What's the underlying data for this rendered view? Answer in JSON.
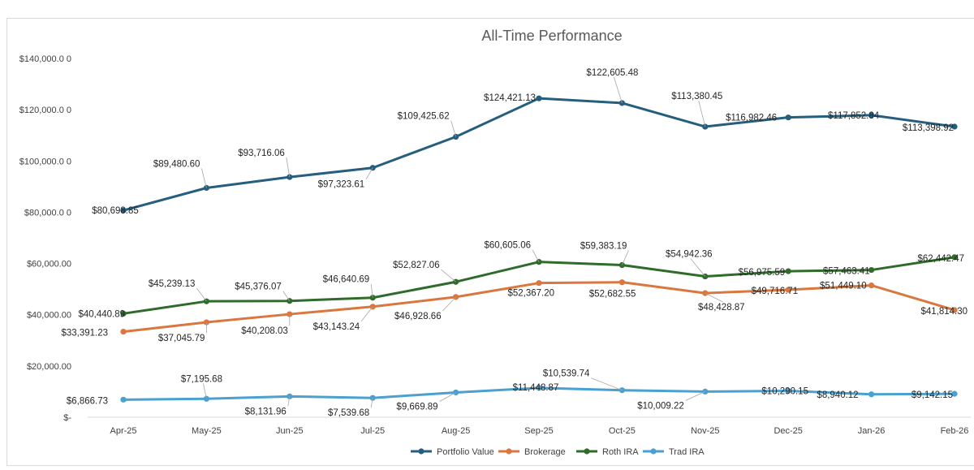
{
  "chart_data": {
    "type": "line",
    "title": "All-Time Performance",
    "xlabel": "",
    "ylabel": "",
    "ylim": [
      0,
      140000
    ],
    "grid": false,
    "legend": "bottom",
    "categories": [
      "Apr-25",
      "May-25",
      "Jun-25",
      "Jul-25",
      "Aug-25",
      "Sep-25",
      "Oct-25",
      "Nov-25",
      "Dec-25",
      "Jan-26",
      "Feb-26"
    ],
    "y_ticks": [
      {
        "value": 0,
        "label": "$-"
      },
      {
        "value": 20000,
        "label": "$20,000.00"
      },
      {
        "value": 40000,
        "label": "$40,000.00"
      },
      {
        "value": 60000,
        "label": "$60,000.00"
      },
      {
        "value": 80000,
        "label": "$80,000.0 0"
      },
      {
        "value": 100000,
        "label": "$100,000.0 0"
      },
      {
        "value": 120000,
        "label": "$120,000.0 0"
      },
      {
        "value": 140000,
        "label": "$140,000.0 0"
      }
    ],
    "series": [
      {
        "name": "Portfolio Value",
        "color": "#255e7e",
        "values": [
          80698.85,
          89480.6,
          93716.06,
          97323.61,
          109425.62,
          124421.13,
          122605.48,
          113380.45,
          116982.46,
          117852.84,
          113398.92
        ],
        "labels": [
          "$80,698.85",
          "$89,480.60",
          "$93,716.06",
          "$97,323.61",
          "$109,425.62",
          "$124,421.13",
          "$122,605.48",
          "$113,380.45",
          "$116,982.46",
          "$117,852.84",
          "$113,398.92"
        ]
      },
      {
        "name": "Brokerage",
        "color": "#d9773f",
        "values": [
          33391.23,
          37045.79,
          40208.03,
          43143.24,
          46928.66,
          52367.2,
          52682.55,
          48428.87,
          49716.71,
          51449.1,
          41814.3
        ],
        "labels": [
          "$33,391.23",
          "$37,045.79",
          "$40,208.03",
          "$43,143.24",
          "$46,928.66",
          "$52,367.20",
          "$52,682.55",
          "$48,428.87",
          "$49,716.71",
          "$51,449.10",
          "$41,814.30"
        ]
      },
      {
        "name": "Roth IRA",
        "color": "#2f6b2a",
        "values": [
          40440.89,
          45239.13,
          45376.07,
          46640.69,
          52827.06,
          60605.06,
          59383.19,
          54942.36,
          56975.59,
          57463.41,
          62442.47
        ],
        "labels": [
          "$40,440.89",
          "$45,239.13",
          "$45,376.07",
          "$46,640.69",
          "$52,827.06",
          "$60,605.06",
          "$59,383.19",
          "$54,942.36",
          "$56,975.59",
          "$57,463.41",
          "$62,442.47"
        ]
      },
      {
        "name": "Trad IRA",
        "color": "#4aa0cf",
        "values": [
          6866.73,
          7195.68,
          8131.96,
          7539.68,
          9669.89,
          11448.87,
          10539.74,
          10009.22,
          10290.15,
          8940.12,
          9142.15
        ],
        "labels": [
          "$6,866.73",
          "$7,195.68",
          "$8,131.96",
          "$7,539.68",
          "$9,669.89",
          "$11,448.87",
          "$10,539.74",
          "$10,009.22",
          "$10,290.15",
          "$8,940.12",
          "$9,142.15"
        ]
      }
    ]
  }
}
